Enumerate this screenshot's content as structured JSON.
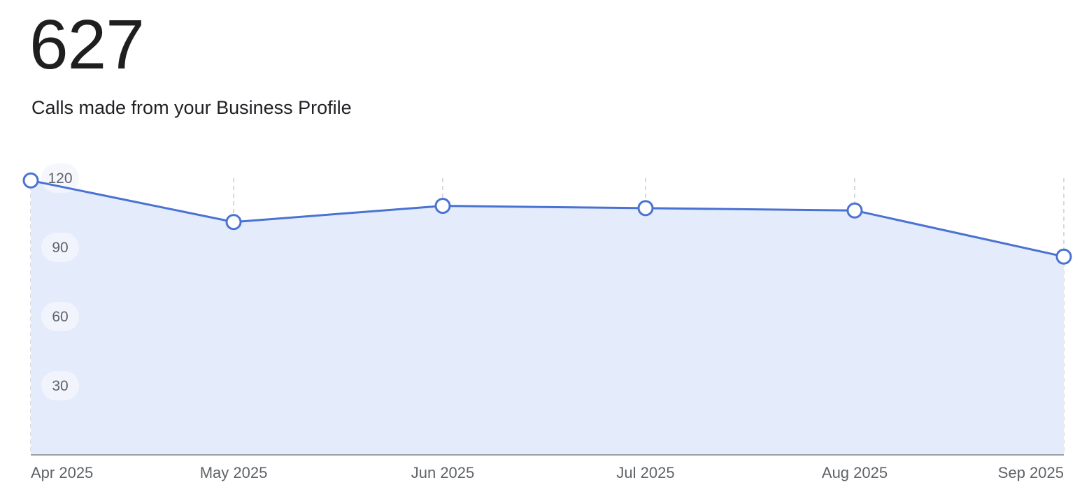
{
  "metric": {
    "value": "627",
    "label": "Calls made from your Business Profile"
  },
  "colors": {
    "line": "#4a72d2",
    "area": "#e4ebfb",
    "grid": "#c9cdd6",
    "axis": "#80868b",
    "tick_bg": "#f4f6fd"
  },
  "chart_data": {
    "type": "area",
    "x": [
      "Apr 2025",
      "May 2025",
      "Jun 2025",
      "Jul 2025",
      "Aug 2025",
      "Sep 2025"
    ],
    "series": [
      {
        "values": [
          119,
          101,
          108,
          107,
          106,
          86
        ]
      }
    ],
    "y_ticks": [
      30,
      60,
      90,
      120
    ],
    "ylim": [
      0,
      120
    ],
    "grid": "vertical dashed",
    "xlabel": "",
    "ylabel": ""
  }
}
